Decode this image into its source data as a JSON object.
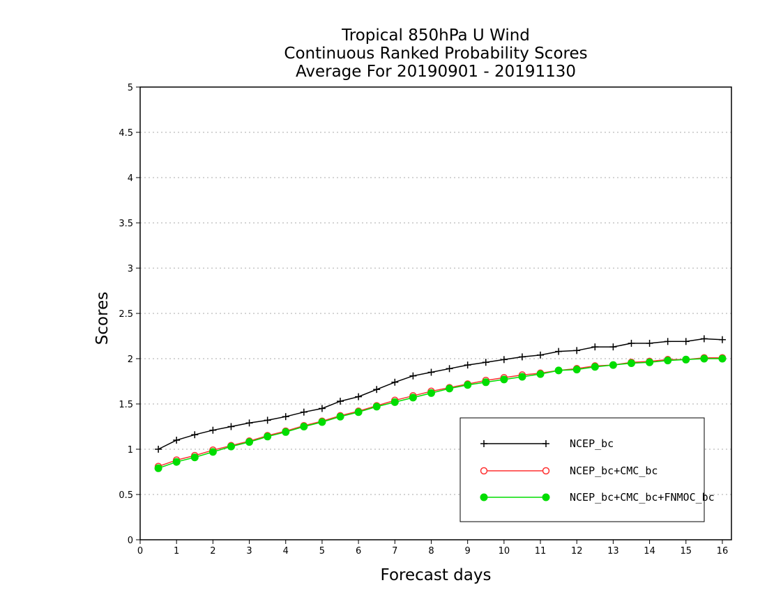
{
  "chart_data": {
    "type": "line",
    "title_lines": [
      "Tropical 850hPa U Wind",
      "Continuous Ranked Probability Scores",
      "Average For 20190901 - 20191130"
    ],
    "xlabel": "Forecast days",
    "ylabel": "Scores",
    "xlim": [
      0,
      16.25
    ],
    "ylim": [
      0,
      5
    ],
    "x_ticks": [
      0,
      1,
      2,
      3,
      4,
      5,
      6,
      7,
      8,
      9,
      10,
      11,
      12,
      13,
      14,
      15,
      16
    ],
    "x_tick_labels": [
      "0",
      "1",
      "2",
      "3",
      "4",
      "5",
      "6",
      "7",
      "8",
      "9",
      "10",
      "11",
      "12",
      "13",
      "14",
      "15",
      "16"
    ],
    "y_ticks": [
      0,
      0.5,
      1,
      1.5,
      2,
      2.5,
      3,
      3.5,
      4,
      4.5,
      5
    ],
    "y_tick_labels": [
      "0",
      "0.5",
      "1",
      "1.5",
      "2",
      "2.5",
      "3",
      "3.5",
      "4",
      "4.5",
      "5"
    ],
    "grid": "horizontal-dotted",
    "legend_position": "bottom-right",
    "x": [
      0.5,
      1,
      1.5,
      2,
      2.5,
      3,
      3.5,
      4,
      4.5,
      5,
      5.5,
      6,
      6.5,
      7,
      7.5,
      8,
      8.5,
      9,
      9.5,
      10,
      10.5,
      11,
      11.5,
      12,
      12.5,
      13,
      13.5,
      14,
      14.5,
      15,
      15.5,
      16
    ],
    "series": [
      {
        "name": "NCEP_bc",
        "color": "#000000",
        "marker": "plus",
        "values": [
          1.0,
          1.1,
          1.16,
          1.21,
          1.25,
          1.29,
          1.32,
          1.36,
          1.41,
          1.45,
          1.53,
          1.58,
          1.66,
          1.74,
          1.81,
          1.85,
          1.89,
          1.93,
          1.96,
          1.99,
          2.02,
          2.04,
          2.08,
          2.09,
          2.13,
          2.13,
          2.17,
          2.17,
          2.19,
          2.19,
          2.22,
          2.21
        ]
      },
      {
        "name": "NCEP_bc+CMC_bc",
        "color": "#ff3030",
        "marker": "open-circle",
        "values": [
          0.81,
          0.88,
          0.93,
          0.99,
          1.04,
          1.09,
          1.15,
          1.2,
          1.26,
          1.31,
          1.37,
          1.42,
          1.48,
          1.54,
          1.59,
          1.64,
          1.68,
          1.72,
          1.76,
          1.79,
          1.82,
          1.84,
          1.87,
          1.89,
          1.92,
          1.93,
          1.96,
          1.97,
          1.99,
          1.99,
          2.01,
          2.01
        ]
      },
      {
        "name": "NCEP_bc+CMC_bc+FNMOC_bc",
        "color": "#00dd00",
        "marker": "filled-circle",
        "values": [
          0.79,
          0.86,
          0.91,
          0.97,
          1.03,
          1.08,
          1.14,
          1.19,
          1.25,
          1.3,
          1.36,
          1.41,
          1.47,
          1.52,
          1.57,
          1.62,
          1.67,
          1.71,
          1.74,
          1.77,
          1.8,
          1.83,
          1.87,
          1.88,
          1.91,
          1.93,
          1.95,
          1.96,
          1.98,
          1.99,
          2.0,
          2.0
        ]
      }
    ]
  }
}
